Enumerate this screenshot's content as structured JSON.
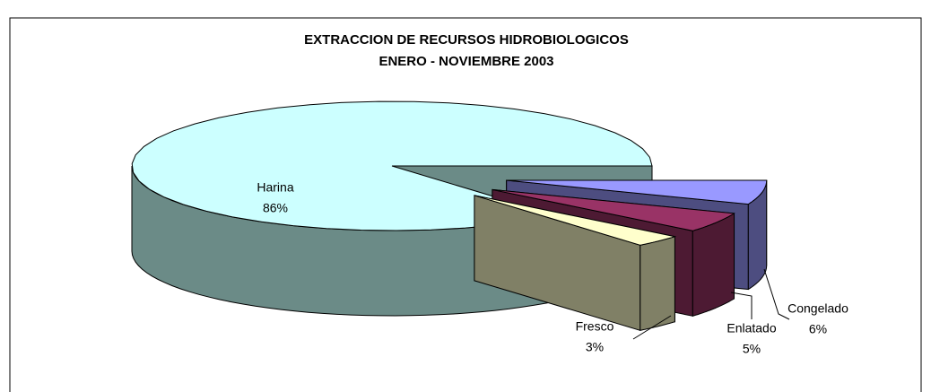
{
  "chart_data": {
    "type": "pie",
    "title": "EXTRACCION DE RECURSOS HIDROBIOLOGICOS",
    "subtitle": "ENERO - NOVIEMBRE 2003",
    "categories": [
      "Congelado",
      "Enlatado",
      "Fresco",
      "Harina"
    ],
    "values": [
      6,
      5,
      3,
      86
    ],
    "value_labels": [
      "6%",
      "5%",
      "3%",
      "86%"
    ],
    "colors": [
      "#9999ff",
      "#993366",
      "#ffffcc",
      "#ccffff"
    ],
    "side_colors": [
      "#4d4d80",
      "#4d1a33",
      "#808066",
      "#6b8b87"
    ]
  }
}
